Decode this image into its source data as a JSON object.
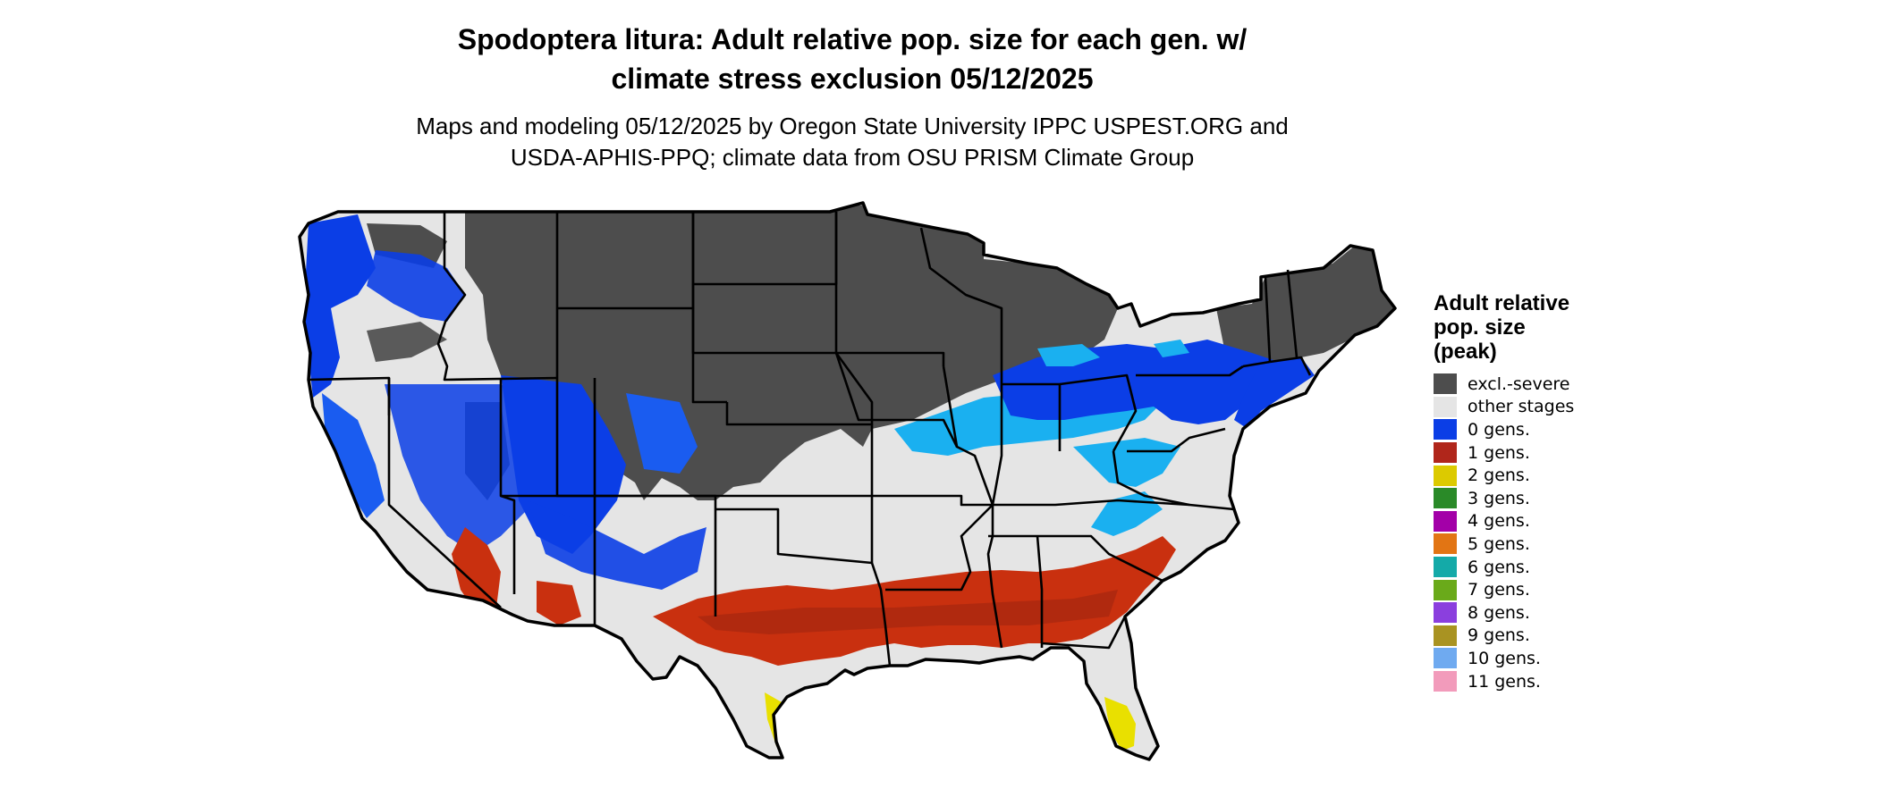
{
  "header": {
    "title_line1": "Spodoptera litura: Adult relative pop. size for each gen. w/",
    "title_line2": "climate stress exclusion 05/12/2025",
    "subtitle_line1": "Maps and modeling 05/12/2025 by Oregon State University IPPC USPEST.ORG and",
    "subtitle_line2": "USDA-APHIS-PPQ; climate data from OSU PRISM Climate Group"
  },
  "legend": {
    "title_line1": "Adult relative",
    "title_line2": "pop. size",
    "title_line3": "(peak)",
    "items": [
      {
        "label": "excl.-severe",
        "color": "#4d4d4d"
      },
      {
        "label": "other stages",
        "color": "#e5e5e5"
      },
      {
        "label": "0 gens.",
        "color": "#0b3ee6"
      },
      {
        "label": "1 gens.",
        "color": "#b0261b"
      },
      {
        "label": "2 gens.",
        "color": "#dcca00"
      },
      {
        "label": "3 gens.",
        "color": "#2a8a28"
      },
      {
        "label": "4 gens.",
        "color": "#a300a8"
      },
      {
        "label": "5 gens.",
        "color": "#e27514"
      },
      {
        "label": "6 gens.",
        "color": "#14aaa8"
      },
      {
        "label": "7 gens.",
        "color": "#6aaa1a"
      },
      {
        "label": "8 gens.",
        "color": "#8b3fde"
      },
      {
        "label": "9 gens.",
        "color": "#a99322"
      },
      {
        "label": "10 gens.",
        "color": "#6faaf0"
      },
      {
        "label": "11 gens.",
        "color": "#f29bbb"
      }
    ]
  },
  "map_colors": {
    "excluded": "#4d4d4d",
    "other": "#e5e5e5",
    "zero_gen_dark": "#0b3ee6",
    "zero_gen_light": "#1ab0f0",
    "one_gen": "#c9300f",
    "one_gen_dark": "#9a2410",
    "two_gen": "#e9e000",
    "border": "#000000"
  }
}
